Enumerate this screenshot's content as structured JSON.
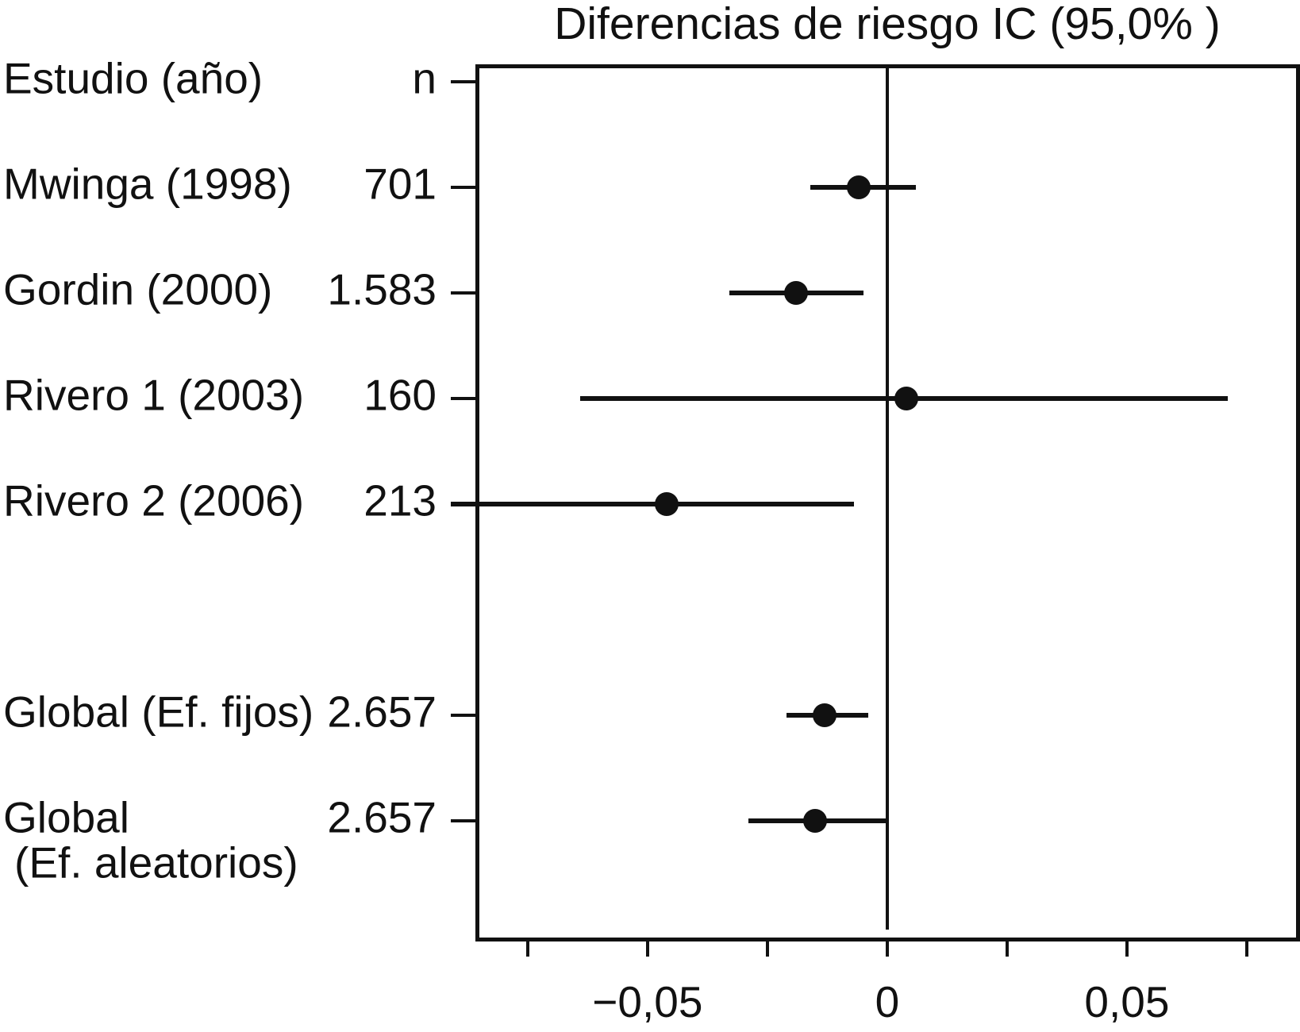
{
  "chart_data": {
    "type": "forest",
    "title": "Diferencias de riesgo IC (95,0% )",
    "columns": {
      "study_header": "Estudio (año)",
      "n_header": "n"
    },
    "xlabel": "",
    "xlim": [
      -0.0854,
      0.0856
    ],
    "zero_line": 0,
    "grid": false,
    "x_ticks_minor": [
      -0.075,
      -0.05,
      -0.025,
      0,
      0.025,
      0.05,
      0.075
    ],
    "x_tick_values_labeled": [
      -0.05,
      0,
      0.05
    ],
    "x_tick_labels": [
      "−0,05",
      "0",
      "0,05"
    ],
    "decimal_separator": ",",
    "rows": [
      {
        "label": "Estudio (año)",
        "n": "n",
        "header": true,
        "row": 0
      },
      {
        "label": "Mwinga (1998)",
        "n": "701",
        "estimate": -0.006,
        "ci_low": -0.016,
        "ci_high": 0.006,
        "row": 1
      },
      {
        "label": "Gordin (2000)",
        "n": "1.583",
        "estimate": -0.019,
        "ci_low": -0.033,
        "ci_high": -0.005,
        "row": 2
      },
      {
        "label": "Rivero 1 (2003)",
        "n": "160",
        "estimate": 0.004,
        "ci_low": -0.064,
        "ci_high": 0.071,
        "row": 3
      },
      {
        "label": "Rivero 2 (2006)",
        "n": "213",
        "estimate": -0.046,
        "ci_low": -0.091,
        "ci_low_offscale": true,
        "ci_high": -0.007,
        "row": 4
      },
      {
        "label": "Global (Ef. fijos)",
        "n": "2.657",
        "estimate": -0.013,
        "ci_low": -0.021,
        "ci_high": -0.004,
        "row": 6
      },
      {
        "label": "Global",
        "label_line2": "(Ef. aleatorios)",
        "n": "2.657",
        "estimate": -0.015,
        "ci_low": -0.029,
        "ci_high": 0.0,
        "row": 7
      }
    ]
  },
  "colors": {
    "ink": "#111111",
    "background": "#ffffff"
  }
}
